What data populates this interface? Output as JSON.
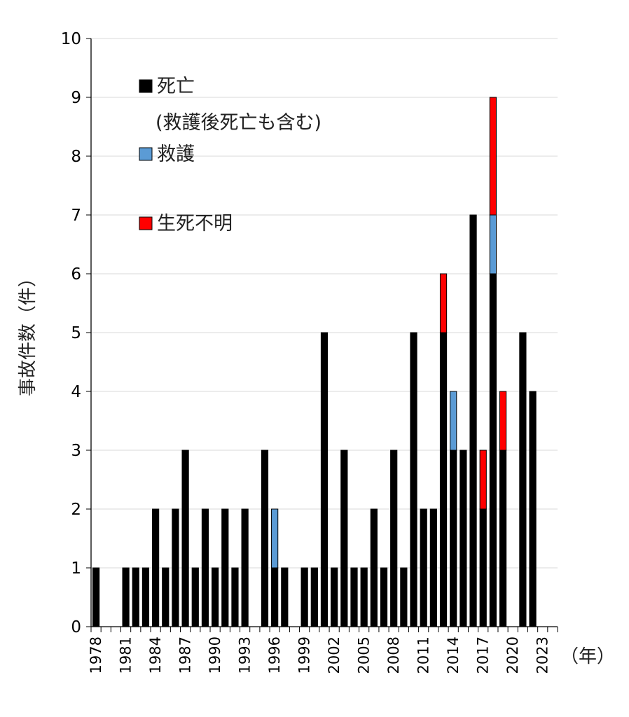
{
  "chart_data": {
    "type": "bar",
    "stacked": true,
    "ylabel": "事故件数（件）",
    "xunit": "（年）",
    "ylim": [
      0,
      10
    ],
    "yticks": [
      "0",
      "1",
      "2",
      "3",
      "4",
      "5",
      "6",
      "7",
      "8",
      "9",
      "10"
    ],
    "grid": true,
    "legend_placement": "top-left",
    "categories": [
      "1978",
      "1979",
      "1980",
      "1981",
      "1982",
      "1983",
      "1984",
      "1985",
      "1986",
      "1987",
      "1988",
      "1989",
      "1990",
      "1991",
      "1992",
      "1993",
      "1994",
      "1995",
      "1996",
      "1997",
      "1998",
      "1999",
      "2000",
      "2001",
      "2002",
      "2003",
      "2004",
      "2005",
      "2006",
      "2007",
      "2008",
      "2009",
      "2010",
      "2011",
      "2012",
      "2013",
      "2014",
      "2015",
      "2016",
      "2017",
      "2018",
      "2019",
      "2020",
      "2021",
      "2022",
      "2023",
      "2024"
    ],
    "xtick_labels": [
      "1978",
      "1981",
      "1984",
      "1987",
      "1990",
      "1993",
      "1996",
      "1999",
      "2002",
      "2005",
      "2008",
      "2011",
      "2014",
      "2017",
      "2020",
      "2023"
    ],
    "series": [
      {
        "name": "死亡",
        "color": "#000000",
        "values": [
          1,
          0,
          0,
          1,
          1,
          1,
          2,
          1,
          2,
          3,
          1,
          2,
          1,
          2,
          1,
          2,
          0,
          3,
          1,
          1,
          0,
          1,
          1,
          5,
          1,
          3,
          1,
          1,
          2,
          1,
          3,
          1,
          5,
          2,
          2,
          5,
          3,
          3,
          7,
          2,
          6,
          3,
          0,
          5,
          4,
          0,
          0
        ]
      },
      {
        "name": "救護",
        "color": "#5b9bd5",
        "values": [
          0,
          0,
          0,
          0,
          0,
          0,
          0,
          0,
          0,
          0,
          0,
          0,
          0,
          0,
          0,
          0,
          0,
          0,
          1,
          0,
          0,
          0,
          0,
          0,
          0,
          0,
          0,
          0,
          0,
          0,
          0,
          0,
          0,
          0,
          0,
          0,
          1,
          0,
          0,
          0,
          1,
          0,
          0,
          0,
          0,
          0,
          0
        ]
      },
      {
        "name": "生死不明",
        "color": "#ff0000",
        "values": [
          0,
          0,
          0,
          0,
          0,
          0,
          0,
          0,
          0,
          0,
          0,
          0,
          0,
          0,
          0,
          0,
          0,
          0,
          0,
          0,
          0,
          0,
          0,
          0,
          0,
          0,
          0,
          0,
          0,
          0,
          0,
          0,
          0,
          0,
          0,
          1,
          0,
          0,
          0,
          1,
          2,
          1,
          0,
          0,
          0,
          0,
          0
        ]
      }
    ],
    "legend": [
      {
        "label": "死亡",
        "note": "(救護後死亡も含む)",
        "color": "#000000"
      },
      {
        "label": "救護",
        "color": "#5b9bd5"
      },
      {
        "label": "生死不明",
        "color": "#ff0000"
      }
    ]
  }
}
